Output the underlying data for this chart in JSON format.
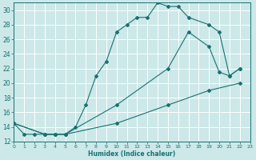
{
  "xlabel": "Humidex (Indice chaleur)",
  "bg_color": "#cce8e8",
  "grid_color": "#ffffff",
  "line_color": "#1a7070",
  "xlim": [
    0,
    23
  ],
  "ylim": [
    12,
    31
  ],
  "xticks": [
    0,
    1,
    2,
    3,
    4,
    5,
    6,
    7,
    8,
    9,
    10,
    11,
    12,
    13,
    14,
    15,
    16,
    17,
    18,
    19,
    20,
    21,
    22,
    23
  ],
  "yticks": [
    12,
    14,
    16,
    18,
    20,
    22,
    24,
    26,
    28,
    30
  ],
  "line1_x": [
    0,
    1,
    2,
    3,
    4,
    5,
    6,
    7,
    8,
    9,
    10,
    11,
    12,
    13,
    14,
    15,
    16,
    17,
    19,
    20,
    21,
    22
  ],
  "line1_y": [
    14.5,
    13,
    13,
    13,
    13,
    13,
    14,
    17,
    21,
    23,
    27,
    28,
    29,
    29,
    31,
    30.5,
    30.5,
    29,
    28,
    27,
    21,
    22
  ],
  "line2_x": [
    0,
    3,
    4,
    5,
    10,
    15,
    17,
    19,
    20,
    21,
    22
  ],
  "line2_y": [
    14.5,
    13,
    13,
    13,
    17,
    22,
    27,
    25,
    21.5,
    21,
    22
  ],
  "line3_x": [
    0,
    3,
    4,
    5,
    10,
    15,
    19,
    22
  ],
  "line3_y": [
    14.5,
    13,
    13,
    13,
    14.5,
    17,
    19,
    20
  ]
}
